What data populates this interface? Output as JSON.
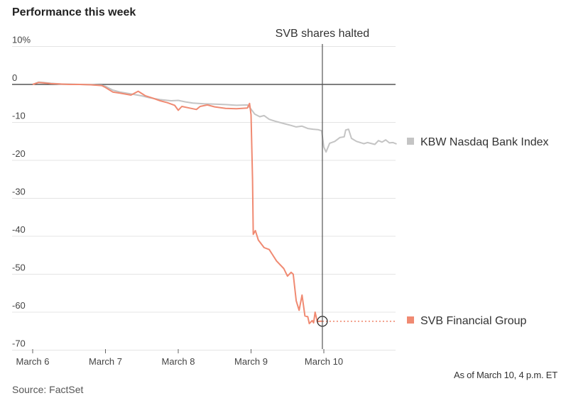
{
  "header": {
    "title": "Performance this week"
  },
  "footer": {
    "source": "Source: FactSet",
    "as_of": "As of March 10, 4 p.m. ET"
  },
  "colors": {
    "svb": "#f08a72",
    "kbw": "#c4c4c4",
    "grid": "#e4e4e4",
    "zero": "#333333",
    "halt": "#555555"
  },
  "chart_data": {
    "type": "line",
    "title": "Performance this week",
    "xlabel": "",
    "ylabel": "",
    "y_unit": "%",
    "ylim": [
      -70,
      10
    ],
    "yticks": [
      10,
      0,
      -10,
      -20,
      -30,
      -40,
      -50,
      -60,
      -70
    ],
    "ytick_labels": [
      "10%",
      "0",
      "-10",
      "-20",
      "-30",
      "-40",
      "-50",
      "-60",
      "-70"
    ],
    "xlim": [
      0,
      5
    ],
    "xticks": [
      0,
      1,
      2,
      3,
      4
    ],
    "xtick_labels": [
      "March 6",
      "March 7",
      "March 8",
      "March 9",
      "March 10"
    ],
    "annotations": [
      {
        "label": "SVB shares halted",
        "x": 3.98
      }
    ],
    "series": [
      {
        "name": "KBW Nasdaq Bank Index",
        "color": "#c4c4c4",
        "points": [
          [
            0.0,
            0.0
          ],
          [
            0.08,
            0.6
          ],
          [
            0.15,
            0.5
          ],
          [
            0.25,
            0.3
          ],
          [
            0.4,
            0.1
          ],
          [
            0.5,
            0.1
          ],
          [
            0.65,
            0.0
          ],
          [
            0.8,
            -0.1
          ],
          [
            0.95,
            -0.2
          ],
          [
            1.0,
            -0.5
          ],
          [
            1.1,
            -1.5
          ],
          [
            1.2,
            -2.0
          ],
          [
            1.35,
            -2.5
          ],
          [
            1.5,
            -3.0
          ],
          [
            1.6,
            -3.5
          ],
          [
            1.75,
            -4.0
          ],
          [
            1.9,
            -4.3
          ],
          [
            2.0,
            -4.2
          ],
          [
            2.1,
            -4.6
          ],
          [
            2.2,
            -4.9
          ],
          [
            2.35,
            -5.1
          ],
          [
            2.5,
            -5.2
          ],
          [
            2.65,
            -5.3
          ],
          [
            2.8,
            -5.5
          ],
          [
            2.95,
            -5.4
          ],
          [
            3.0,
            -6.5
          ],
          [
            3.05,
            -7.8
          ],
          [
            3.12,
            -8.5
          ],
          [
            3.18,
            -8.2
          ],
          [
            3.25,
            -9.2
          ],
          [
            3.35,
            -9.8
          ],
          [
            3.45,
            -10.3
          ],
          [
            3.55,
            -10.8
          ],
          [
            3.62,
            -11.2
          ],
          [
            3.7,
            -11.0
          ],
          [
            3.78,
            -11.6
          ],
          [
            3.85,
            -11.8
          ],
          [
            3.92,
            -11.9
          ],
          [
            3.97,
            -12.2
          ],
          [
            4.0,
            -16.5
          ],
          [
            4.03,
            -17.8
          ],
          [
            4.08,
            -15.5
          ],
          [
            4.15,
            -15.0
          ],
          [
            4.22,
            -14.0
          ],
          [
            4.28,
            -13.8
          ],
          [
            4.3,
            -12.0
          ],
          [
            4.34,
            -11.8
          ],
          [
            4.38,
            -14.2
          ],
          [
            4.45,
            -15.0
          ],
          [
            4.55,
            -15.6
          ],
          [
            4.6,
            -15.3
          ],
          [
            4.7,
            -15.8
          ],
          [
            4.75,
            -14.8
          ],
          [
            4.8,
            -15.2
          ],
          [
            4.85,
            -14.6
          ],
          [
            4.9,
            -15.4
          ],
          [
            4.95,
            -15.3
          ],
          [
            5.0,
            -15.7
          ]
        ]
      },
      {
        "name": "SVB Financial Group",
        "color": "#f08a72",
        "points": [
          [
            0.0,
            0.0
          ],
          [
            0.08,
            0.5
          ],
          [
            0.15,
            0.4
          ],
          [
            0.25,
            0.2
          ],
          [
            0.4,
            0.1
          ],
          [
            0.5,
            0.0
          ],
          [
            0.65,
            0.0
          ],
          [
            0.8,
            -0.1
          ],
          [
            0.95,
            -0.3
          ],
          [
            1.0,
            -0.8
          ],
          [
            1.1,
            -2.0
          ],
          [
            1.2,
            -2.3
          ],
          [
            1.35,
            -2.8
          ],
          [
            1.45,
            -1.8
          ],
          [
            1.55,
            -3.0
          ],
          [
            1.65,
            -3.6
          ],
          [
            1.75,
            -4.3
          ],
          [
            1.85,
            -4.8
          ],
          [
            1.95,
            -5.5
          ],
          [
            2.0,
            -6.8
          ],
          [
            2.05,
            -5.8
          ],
          [
            2.15,
            -6.2
          ],
          [
            2.25,
            -6.6
          ],
          [
            2.3,
            -5.8
          ],
          [
            2.4,
            -5.4
          ],
          [
            2.5,
            -5.9
          ],
          [
            2.65,
            -6.3
          ],
          [
            2.8,
            -6.4
          ],
          [
            2.95,
            -6.2
          ],
          [
            2.98,
            -5.0
          ],
          [
            3.0,
            -8.0
          ],
          [
            3.02,
            -25.0
          ],
          [
            3.03,
            -39.5
          ],
          [
            3.06,
            -38.5
          ],
          [
            3.1,
            -41.0
          ],
          [
            3.18,
            -43.0
          ],
          [
            3.25,
            -43.5
          ],
          [
            3.35,
            -46.5
          ],
          [
            3.45,
            -48.5
          ],
          [
            3.5,
            -50.5
          ],
          [
            3.55,
            -49.5
          ],
          [
            3.58,
            -50.0
          ],
          [
            3.62,
            -57.0
          ],
          [
            3.66,
            -59.5
          ],
          [
            3.7,
            -55.5
          ],
          [
            3.74,
            -61.0
          ],
          [
            3.78,
            -61.2
          ],
          [
            3.8,
            -63.0
          ],
          [
            3.84,
            -62.2
          ],
          [
            3.86,
            -62.8
          ],
          [
            3.88,
            -60.0
          ],
          [
            3.91,
            -62.5
          ],
          [
            3.94,
            -62.4
          ],
          [
            3.98,
            -62.4
          ]
        ],
        "halted_from": 3.98,
        "halted_value": -62.4
      }
    ]
  }
}
